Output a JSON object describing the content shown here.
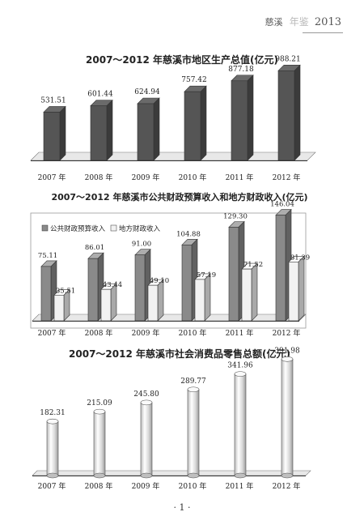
{
  "header": {
    "word": "慈溪",
    "deco": "年鉴",
    "year": "2013"
  },
  "page_number": "· 1 ·",
  "chart_data": [
    {
      "type": "bar",
      "title": "2007～2012 年慈溪市地区生产总值(亿元)",
      "categories": [
        "2007 年",
        "2008 年",
        "2009 年",
        "2010 年",
        "2011 年",
        "2012 年"
      ],
      "values": [
        531.51,
        601.44,
        624.94,
        757.42,
        877.18,
        988.21
      ],
      "value_labels": [
        "531.51",
        "601.44",
        "624.94",
        "757.42",
        "877.18",
        "988.21"
      ],
      "colors": {
        "bar": "#555555"
      }
    },
    {
      "type": "bar",
      "title": "2007～2012 年慈溪市公共财政预算收入和地方财政收入(亿元)",
      "categories": [
        "2007 年",
        "2008 年",
        "2009 年",
        "2010 年",
        "2011 年",
        "2012 年"
      ],
      "series": [
        {
          "name": "公共财政预算收入",
          "values": [
            75.11,
            86.01,
            91.0,
            104.88,
            129.3,
            146.04
          ],
          "labels": [
            "75.11",
            "86.01",
            "91.00",
            "104.88",
            "129.30",
            "146.04"
          ]
        },
        {
          "name": "地方财政收入",
          "values": [
            35.51,
            43.44,
            49.1,
            57.19,
            71.52,
            81.39
          ],
          "labels": [
            "35.51",
            "43.44",
            "49.10",
            "57.19",
            "71.52",
            "81.39"
          ]
        }
      ],
      "legend_placement": "top-left",
      "colors": {
        "series_1": "#8a8a8a",
        "series_2": "#f2f2f2"
      }
    },
    {
      "type": "bar",
      "title": "2007～2012 年慈溪市社会消费品零售总额(亿元)",
      "categories": [
        "2007 年",
        "2008 年",
        "2009 年",
        "2010 年",
        "2011 年",
        "2012 年"
      ],
      "values": [
        182.31,
        215.09,
        245.8,
        289.77,
        341.96,
        391.98
      ],
      "value_labels": [
        "182.31",
        "215.09",
        "245.80",
        "289.77",
        "341.96",
        "391.98"
      ],
      "colors": {
        "bar": "#e0e0e0"
      }
    }
  ]
}
